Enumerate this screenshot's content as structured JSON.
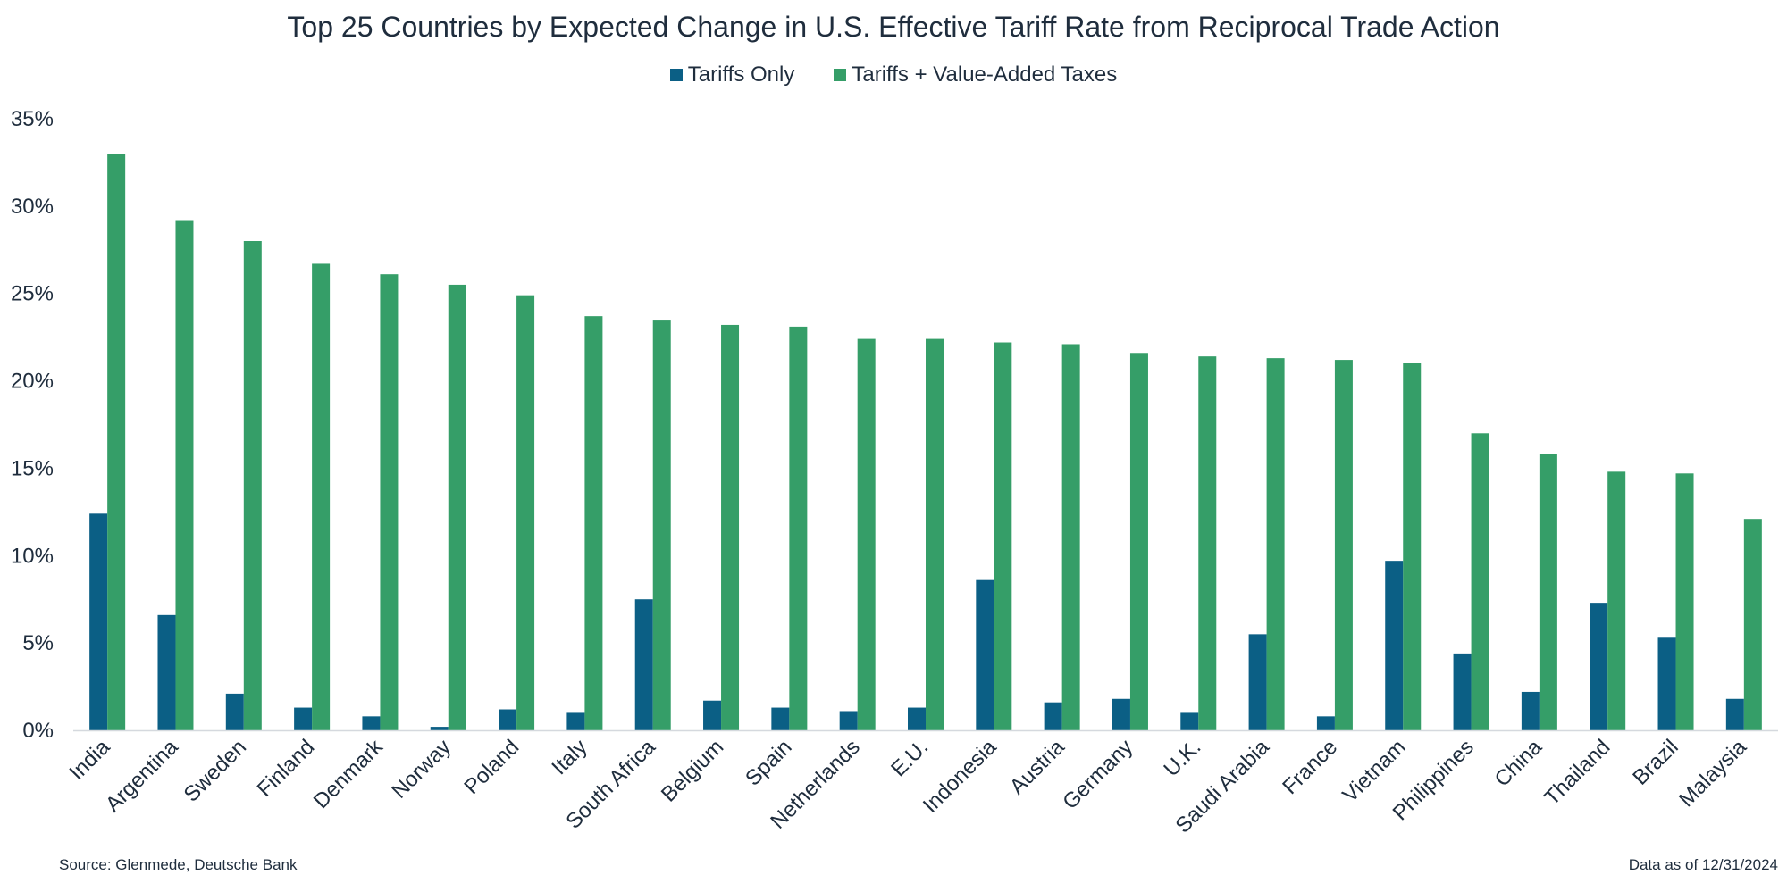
{
  "chart_data": {
    "type": "bar",
    "title": "Top 25 Countries by Expected Change in U.S. Effective Tariff Rate from Reciprocal Trade Action",
    "xlabel": "",
    "ylabel": "",
    "ylim": [
      0,
      35
    ],
    "y_ticks": [
      0,
      5,
      10,
      15,
      20,
      25,
      30,
      35
    ],
    "y_tick_labels": [
      "0%",
      "5%",
      "10%",
      "15%",
      "20%",
      "25%",
      "30%",
      "35%"
    ],
    "grid": false,
    "legend_position": "top-center",
    "categories": [
      "India",
      "Argentina",
      "Sweden",
      "Finland",
      "Denmark",
      "Norway",
      "Poland",
      "Italy",
      "South Africa",
      "Belgium",
      "Spain",
      "Netherlands",
      "E.U.",
      "Indonesia",
      "Austria",
      "Germany",
      "U.K.",
      "Saudi Arabia",
      "France",
      "Vietnam",
      "Philippines",
      "China",
      "Thailand",
      "Brazil",
      "Malaysia"
    ],
    "series": [
      {
        "name": "Tariffs Only",
        "color": "#0b5f85",
        "values": [
          12.4,
          6.6,
          2.1,
          1.3,
          0.8,
          0.2,
          1.2,
          1.0,
          7.5,
          1.7,
          1.3,
          1.1,
          1.3,
          8.6,
          1.6,
          1.8,
          1.0,
          5.5,
          0.8,
          9.7,
          4.4,
          2.2,
          7.3,
          5.3,
          1.8
        ]
      },
      {
        "name": "Tariffs + Value-Added Taxes",
        "color": "#359e68",
        "values": [
          33.0,
          29.2,
          28.0,
          26.7,
          26.1,
          25.5,
          24.9,
          23.7,
          23.5,
          23.2,
          23.1,
          22.4,
          22.4,
          22.2,
          22.1,
          21.6,
          21.4,
          21.3,
          21.2,
          21.0,
          17.0,
          15.8,
          14.8,
          14.7,
          12.1
        ]
      }
    ]
  },
  "footer": {
    "source": "Source: Glenmede, Deutsche Bank",
    "date": "Data as of 12/31/2024"
  }
}
